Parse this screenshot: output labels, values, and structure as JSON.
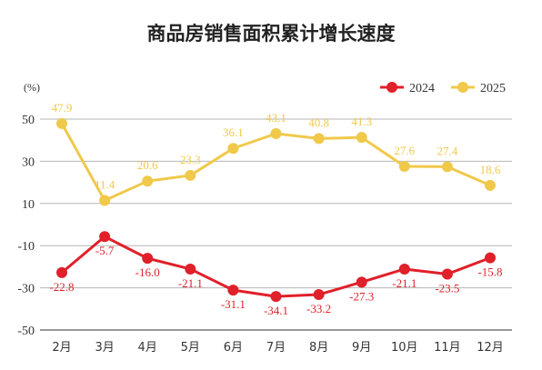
{
  "chart_data": {
    "type": "line",
    "title": "商品房销售面积累计增长速度",
    "unit_label": "(%)",
    "categories": [
      "2月",
      "3月",
      "4月",
      "5月",
      "6月",
      "7月",
      "8月",
      "9月",
      "10月",
      "11月",
      "12月"
    ],
    "series": [
      {
        "name": "2024",
        "color": "#e0202a",
        "values": [
          -22.8,
          -5.7,
          -16.0,
          -21.1,
          -31.1,
          -34.1,
          -33.2,
          -27.3,
          -21.1,
          -23.5,
          -15.8
        ],
        "labels": [
          "-22.8",
          "-5.7",
          "-16.0",
          "-21.1",
          "-31.1",
          "-34.1",
          "-33.2",
          "-27.3",
          "-21.1",
          "-23.5",
          "-15.8"
        ]
      },
      {
        "name": "2025",
        "color": "#f0c94a",
        "values": [
          47.9,
          11.4,
          20.6,
          23.3,
          36.1,
          43.1,
          40.8,
          41.3,
          27.6,
          27.4,
          18.6
        ],
        "labels": [
          "47.9",
          "11.4",
          "20.6",
          "23.3",
          "36.1",
          "43.1",
          "40.8",
          "41.3",
          "27.6",
          "27.4",
          "18.6"
        ]
      }
    ],
    "y_ticks": [
      "50",
      "30",
      "10",
      "-10",
      "-30",
      "-50"
    ],
    "y_tick_values": [
      50,
      30,
      10,
      -10,
      -30,
      -50
    ],
    "ylim": [
      -50,
      50
    ],
    "grid": true,
    "legend_placement": "top-right"
  }
}
